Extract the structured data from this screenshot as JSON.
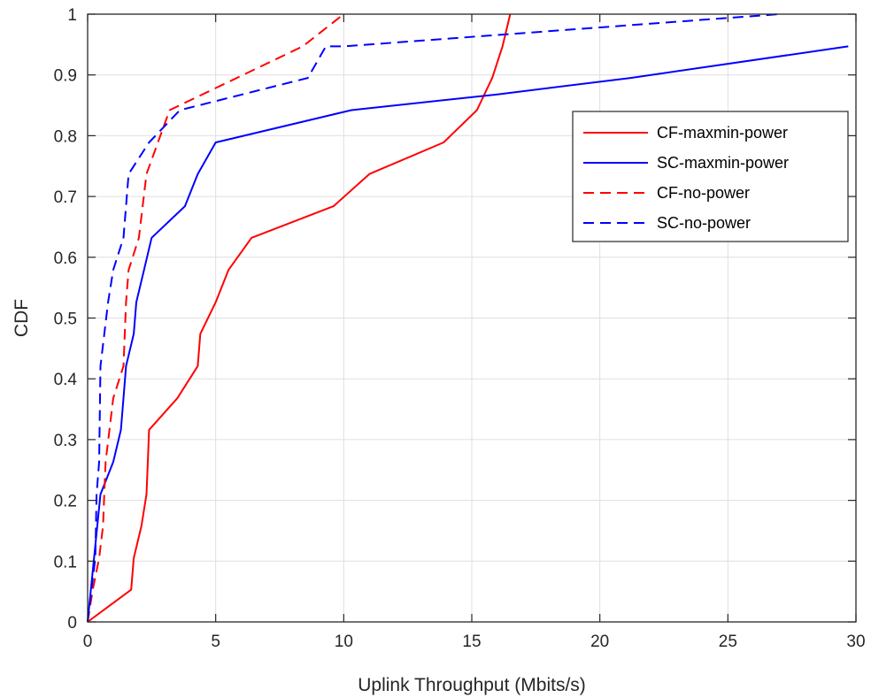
{
  "chart_data": {
    "type": "line",
    "xlabel": "Uplink Throughput (Mbits/s)",
    "ylabel": "CDF",
    "xlim": [
      0,
      30
    ],
    "ylim": [
      0,
      1
    ],
    "xticks": [
      "0",
      "5",
      "10",
      "15",
      "20",
      "25",
      "30"
    ],
    "yticks": [
      "0",
      "0.1",
      "0.2",
      "0.3",
      "0.4",
      "0.5",
      "0.6",
      "0.7",
      "0.8",
      "0.9",
      "1"
    ],
    "grid": true,
    "legend_position": "upper-right",
    "series": [
      {
        "name": "CF-maxmin-power",
        "color": "#ff0000",
        "dash": "solid",
        "x": [
          0,
          1.7,
          1.8,
          2.1,
          2.3,
          2.35,
          2.4,
          3.5,
          4.3,
          4.4,
          5.0,
          5.5,
          6.4,
          9.6,
          11.0,
          13.9,
          15.2,
          15.8,
          16.2,
          16.5
        ],
        "y": [
          0,
          0.053,
          0.105,
          0.158,
          0.21,
          0.263,
          0.316,
          0.368,
          0.421,
          0.474,
          0.526,
          0.579,
          0.632,
          0.684,
          0.737,
          0.789,
          0.842,
          0.895,
          0.947,
          1.0
        ]
      },
      {
        "name": "SC-maxmin-power",
        "color": "#0000ff",
        "dash": "solid",
        "x": [
          0,
          0.5,
          1.0,
          1.3,
          1.4,
          1.5,
          1.8,
          1.9,
          2.2,
          2.5,
          3.8,
          4.3,
          5.0,
          10.3,
          16.0,
          21.2,
          29.7
        ],
        "y": [
          0,
          0.21,
          0.263,
          0.316,
          0.368,
          0.421,
          0.474,
          0.526,
          0.579,
          0.632,
          0.684,
          0.737,
          0.789,
          0.842,
          0.868,
          0.895,
          0.947
        ]
      },
      {
        "name": "CF-no-power",
        "color": "#ff0000",
        "dash": "dashed",
        "x": [
          0,
          0.2,
          0.45,
          0.6,
          0.65,
          0.7,
          1.0,
          1.4,
          1.5,
          1.6,
          2.0,
          2.3,
          3.2,
          8.4,
          10.0
        ],
        "y": [
          0,
          0.053,
          0.105,
          0.158,
          0.21,
          0.263,
          0.368,
          0.421,
          0.526,
          0.579,
          0.632,
          0.737,
          0.842,
          0.947,
          1.0
        ]
      },
      {
        "name": "SC-no-power",
        "color": "#0000ff",
        "dash": "dashed",
        "x": [
          0,
          0.15,
          0.3,
          0.35,
          0.45,
          0.5,
          0.8,
          1.0,
          1.4,
          1.6,
          2.4,
          3.6,
          8.6,
          9.3,
          10.0,
          27.0
        ],
        "y": [
          0,
          0.053,
          0.105,
          0.21,
          0.263,
          0.421,
          0.526,
          0.579,
          0.632,
          0.737,
          0.789,
          0.842,
          0.895,
          0.947,
          0.947,
          1.0
        ]
      }
    ]
  }
}
